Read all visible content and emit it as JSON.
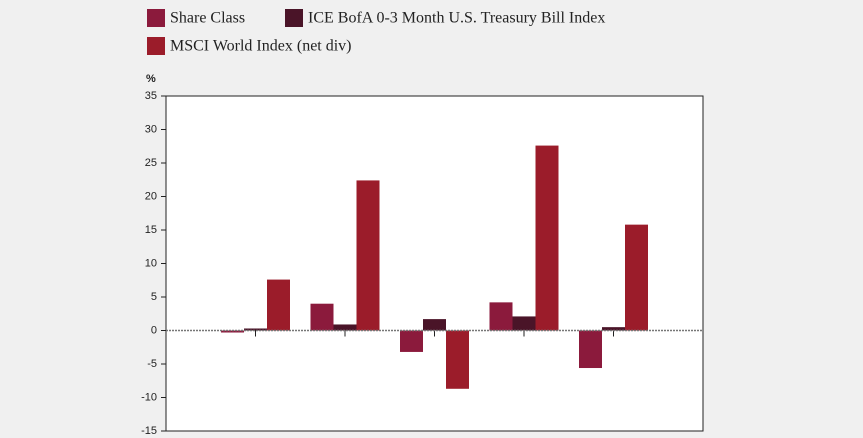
{
  "chart_data": {
    "type": "bar",
    "y_label": "%",
    "categories": [
      null,
      null,
      null,
      null,
      null
    ],
    "series": [
      {
        "name": "Share Class",
        "color": "#8b1a3c",
        "values": [
          -0.3,
          4.0,
          -3.2,
          4.2,
          -5.6
        ]
      },
      {
        "name": "ICE BofA 0-3 Month U.S. Treasury Bill Index",
        "color": "#4a1428",
        "values": [
          0.3,
          0.9,
          1.7,
          2.1,
          0.5
        ]
      },
      {
        "name": "MSCI World Index (net div)",
        "color": "#9b1c2a",
        "values": [
          7.6,
          22.4,
          -8.7,
          27.6,
          15.8
        ]
      }
    ],
    "ylim": [
      -15,
      35
    ],
    "yticks": [
      -15,
      -10,
      -5,
      0,
      5,
      10,
      15,
      20,
      25,
      30,
      35
    ],
    "grid": false
  }
}
